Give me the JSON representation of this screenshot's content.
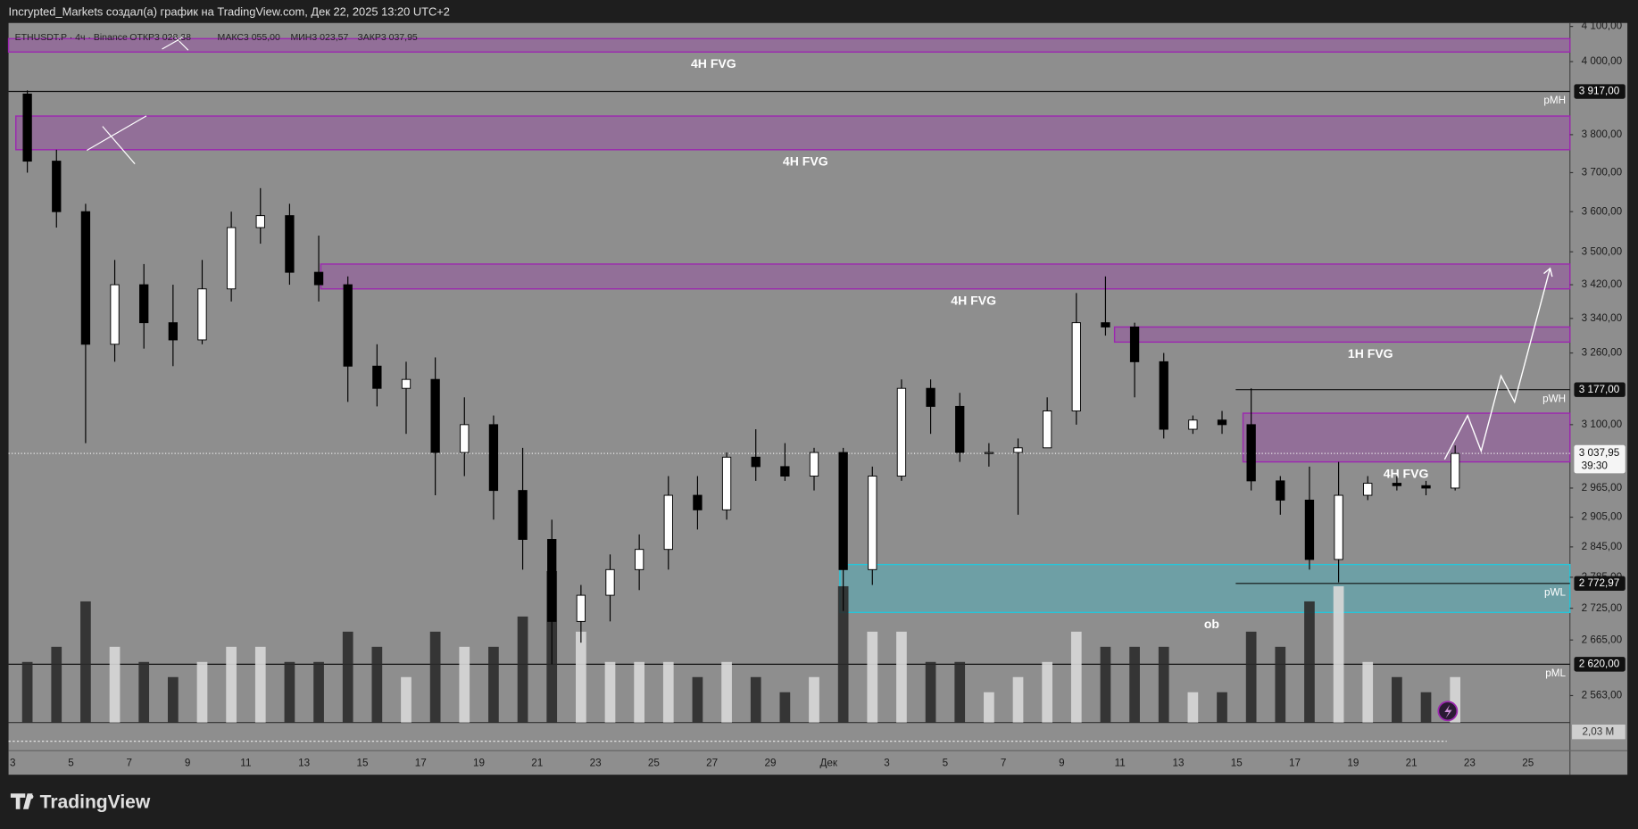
{
  "header": "Incrypted_Markets создал(а) график на TradingView.com, Дек 22, 2025 13:20 UTC+2",
  "footer_logo": "TradingView",
  "chart_data": {
    "type": "candlestick",
    "symbol_line": "ETHUSDT.P · 4ч · Binance",
    "ohlc_legend": [
      "ОТКР3 028,38",
      "МАКС3 055,00",
      "МИН3 023,57",
      "ЗАКР3 037,95"
    ],
    "log_scale": true,
    "up_color": "#ffffff",
    "down_color": "#000000",
    "ylim": [
      2515,
      4110
    ],
    "yticks": [
      {
        "value": 4100,
        "label": "4 100,00"
      },
      {
        "value": 4000,
        "label": "4 000,00"
      },
      {
        "value": 3800,
        "label": "3 800,00"
      },
      {
        "value": 3700,
        "label": "3 700,00"
      },
      {
        "value": 3600,
        "label": "3 600,00"
      },
      {
        "value": 3500,
        "label": "3 500,00"
      },
      {
        "value": 3420,
        "label": "3 420,00"
      },
      {
        "value": 3340,
        "label": "3 340,00"
      },
      {
        "value": 3260,
        "label": "3 260,00"
      },
      {
        "value": 3100,
        "label": "3 100,00"
      },
      {
        "value": 2965,
        "label": "2 965,00"
      },
      {
        "value": 2905,
        "label": "2 905,00"
      },
      {
        "value": 2845,
        "label": "2 845,00"
      },
      {
        "value": 2785,
        "label": "2 785,00"
      },
      {
        "value": 2725,
        "label": "2 725,00"
      },
      {
        "value": 2665,
        "label": "2 665,00"
      },
      {
        "value": 2563,
        "label": "2 563,00"
      }
    ],
    "x_labels": [
      "3",
      "5",
      "7",
      "9",
      "11",
      "13",
      "15",
      "17",
      "19",
      "21",
      "23",
      "25",
      "27",
      "29",
      "Дек",
      "3",
      "5",
      "7",
      "9",
      "11",
      "13",
      "15",
      "17",
      "19",
      "21",
      "23",
      "25"
    ],
    "open": [
      3910,
      3730,
      3600,
      3280,
      3420,
      3330,
      3290,
      3410,
      3560,
      3590,
      3450,
      3420,
      3230,
      3180,
      3200,
      3040,
      3100,
      2960,
      2860,
      2700,
      2750,
      2800,
      2840,
      2950,
      2920,
      3030,
      3010,
      2990,
      3040,
      2800,
      2990,
      3180,
      3140,
      3040,
      3040,
      3050,
      3130,
      3330,
      3320,
      3240,
      3090,
      3110,
      3100,
      2980,
      2940,
      2820,
      2950,
      2975,
      2970,
      2965
    ],
    "high": [
      3920,
      3760,
      3620,
      3480,
      3470,
      3420,
      3480,
      3600,
      3660,
      3620,
      3540,
      3440,
      3280,
      3240,
      3250,
      3160,
      3120,
      3050,
      2900,
      2770,
      2830,
      2870,
      2990,
      2990,
      3040,
      3090,
      3060,
      3050,
      3050,
      3010,
      3200,
      3200,
      3170,
      3060,
      3070,
      3160,
      3400,
      3440,
      3330,
      3260,
      3120,
      3130,
      3180,
      2990,
      3010,
      3020,
      2990,
      2990,
      2980,
      3055
    ],
    "low": [
      3700,
      3560,
      3060,
      3240,
      3270,
      3230,
      3280,
      3380,
      3520,
      3420,
      3380,
      3150,
      3140,
      3080,
      2950,
      2990,
      2900,
      2800,
      2620,
      2660,
      2700,
      2760,
      2800,
      2880,
      2900,
      2980,
      2980,
      2960,
      2720,
      2770,
      2980,
      3080,
      3020,
      3010,
      2910,
      3050,
      3100,
      3300,
      3160,
      3070,
      3080,
      3080,
      2960,
      2910,
      2800,
      2775,
      2940,
      2960,
      2950,
      2960
    ],
    "close": [
      3730,
      3600,
      3280,
      3420,
      3330,
      3290,
      3410,
      3560,
      3590,
      3450,
      3420,
      3230,
      3180,
      3200,
      3040,
      3100,
      2960,
      2860,
      2700,
      2750,
      2800,
      2840,
      2950,
      2920,
      3030,
      3010,
      2990,
      3040,
      2800,
      2990,
      3180,
      3140,
      3040,
      3040,
      3050,
      3130,
      3330,
      3320,
      3240,
      3090,
      3110,
      3100,
      2980,
      2940,
      2820,
      2950,
      2975,
      2970,
      2965,
      3037.95
    ],
    "volumes": [
      4,
      5,
      8,
      5,
      4,
      3,
      4,
      5,
      5,
      4,
      4,
      6,
      5,
      3,
      6,
      5,
      5,
      7,
      10,
      6,
      4,
      4,
      4,
      3,
      4,
      3,
      2,
      3,
      9,
      6,
      6,
      4,
      4,
      2,
      3,
      4,
      6,
      5,
      5,
      5,
      2,
      2,
      6,
      5,
      8,
      9,
      4,
      3,
      2,
      3
    ],
    "zones": [
      {
        "label": "4H FVG",
        "top": 4065,
        "bottom": 4027,
        "color": "#9c27b0"
      },
      {
        "label": "4H FVG",
        "top": 3850,
        "bottom": 3760,
        "color": "#9c27b0"
      },
      {
        "label": "4H FVG",
        "top": 3470,
        "bottom": 3410,
        "color": "#9c27b0"
      },
      {
        "label": "1H FVG",
        "top": 3320,
        "bottom": 3285,
        "color": "#9c27b0"
      },
      {
        "label": "4H FVG",
        "top": 3125,
        "bottom": 3020,
        "color": "#9c27b0"
      },
      {
        "label": "ob",
        "top": 2810,
        "bottom": 2717,
        "color": "#26c6da"
      }
    ],
    "levels": [
      {
        "name": "pMH",
        "value": 3917,
        "label": "3 917,00"
      },
      {
        "name": "pWH",
        "value": 3177,
        "label": "3 177,00"
      },
      {
        "name": "pWL",
        "value": 2772.97,
        "label": "2 772,97"
      },
      {
        "name": "pML",
        "value": 2620,
        "label": "2 620,00"
      }
    ],
    "last_price": {
      "value": 3037.95,
      "label": "3 037,95",
      "countdown": "39:30"
    },
    "pane_label": "2,03 M"
  }
}
